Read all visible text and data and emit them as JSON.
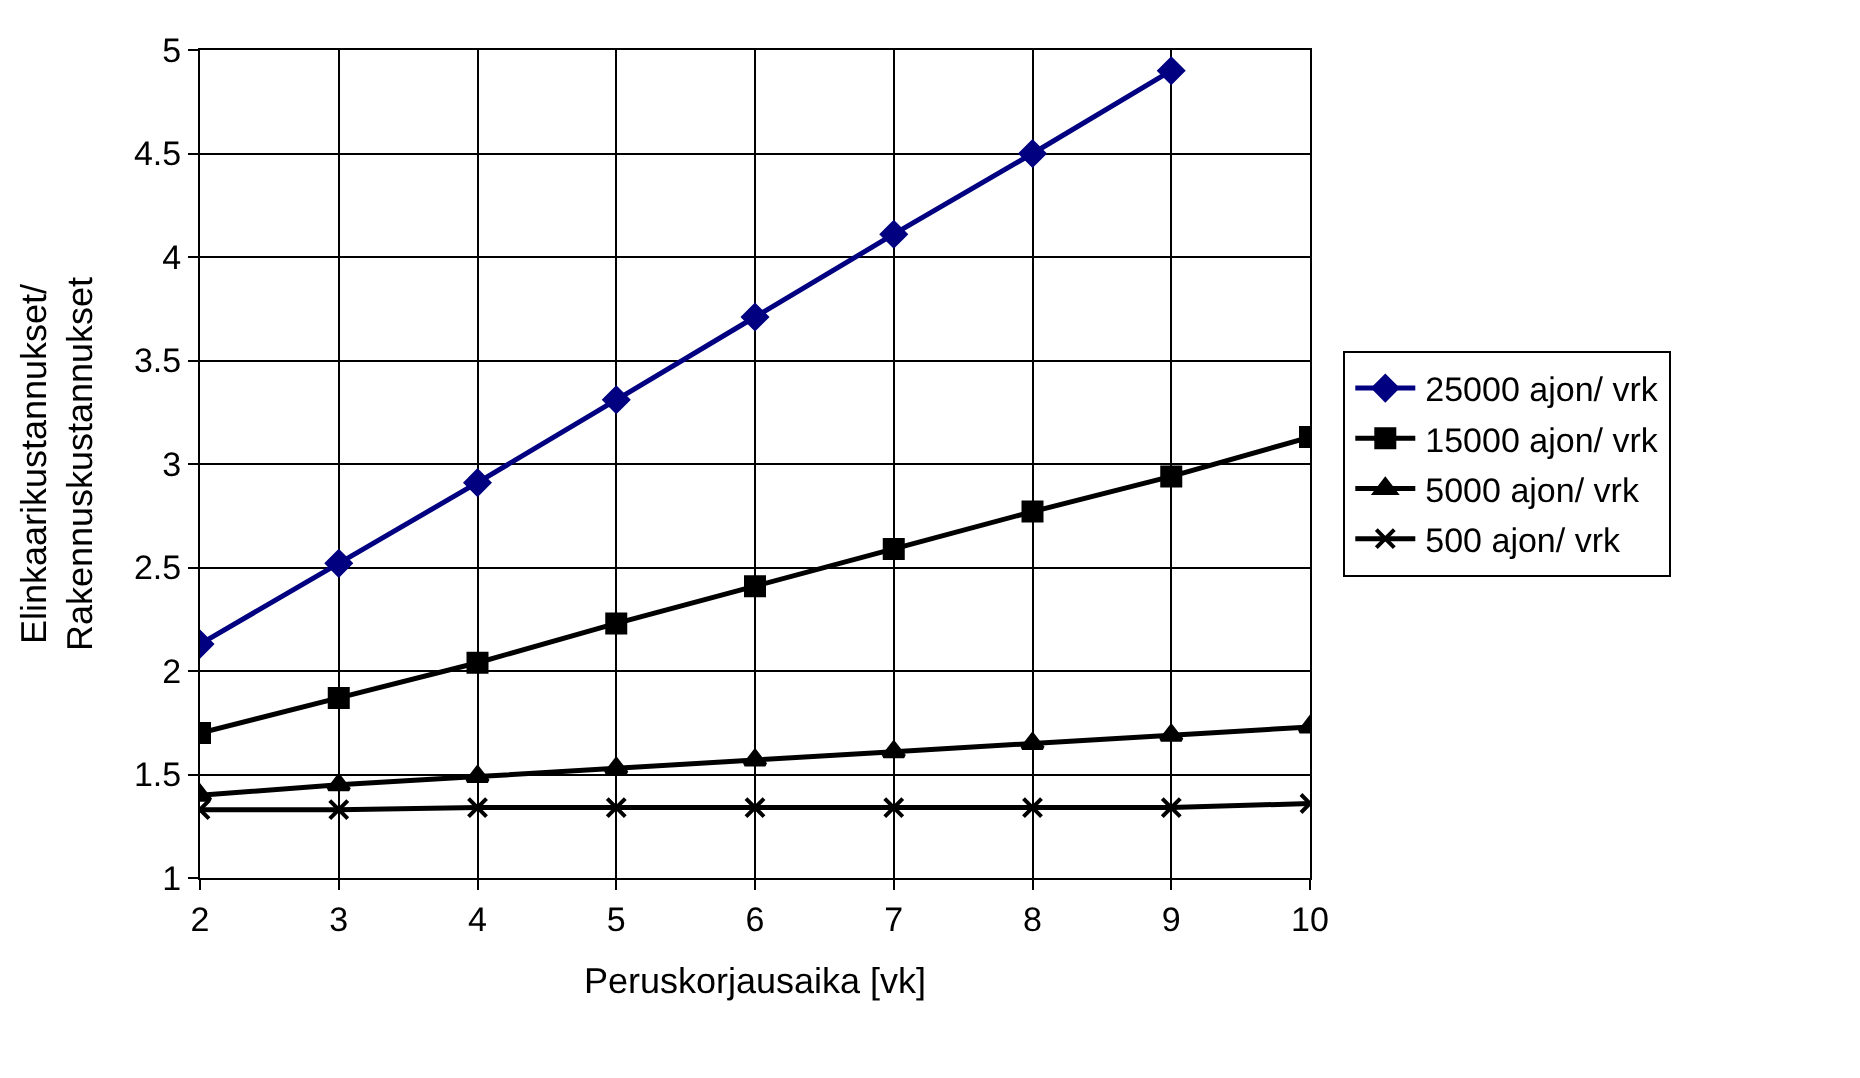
{
  "chart_data": {
    "type": "line",
    "xlabel": "Peruskorjausaika [vk]",
    "ylabel": "Elinkaarikustannukset/\nRakennuskustannukset",
    "x": [
      2,
      3,
      4,
      5,
      6,
      7,
      8,
      9,
      10
    ],
    "series": [
      {
        "name": "25000 ajon/ vrk",
        "color": "#000080",
        "marker": "diamond",
        "values": [
          2.13,
          2.52,
          2.91,
          3.31,
          3.71,
          4.11,
          4.5,
          4.9,
          null
        ]
      },
      {
        "name": "15000 ajon/ vrk",
        "color": "#000000",
        "marker": "square",
        "values": [
          1.7,
          1.87,
          2.04,
          2.23,
          2.41,
          2.59,
          2.77,
          2.94,
          3.13
        ]
      },
      {
        "name": "5000 ajon/ vrk",
        "color": "#000000",
        "marker": "triangle",
        "values": [
          1.4,
          1.45,
          1.49,
          1.53,
          1.57,
          1.61,
          1.65,
          1.69,
          1.73
        ]
      },
      {
        "name": "500 ajon/ vrk",
        "color": "#000000",
        "marker": "cross",
        "values": [
          1.33,
          1.33,
          1.34,
          1.34,
          1.34,
          1.34,
          1.34,
          1.34,
          1.36
        ]
      }
    ],
    "xlim": [
      2,
      10
    ],
    "xticks": [
      2,
      3,
      4,
      5,
      6,
      7,
      8,
      9,
      10
    ],
    "ylim": [
      1,
      5
    ],
    "yticks": [
      1,
      1.5,
      2,
      2.5,
      3,
      3.5,
      4,
      4.5,
      5
    ],
    "grid": true,
    "legend": "right",
    "line_style": "solid"
  }
}
